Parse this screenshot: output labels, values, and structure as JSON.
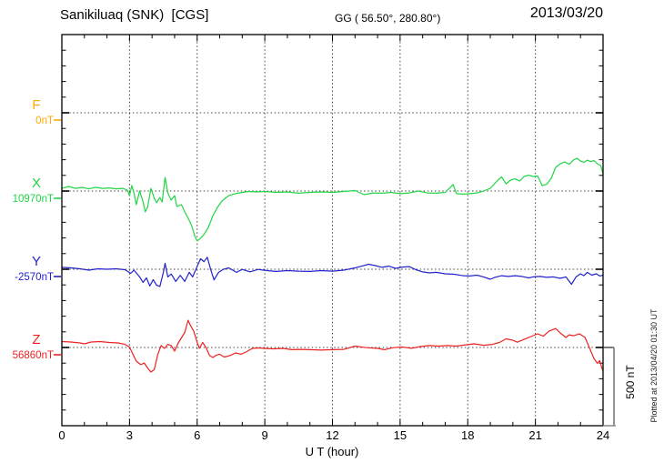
{
  "chart_data": {
    "type": "line",
    "title": "Sanikiluaq (SNK)  [CGS]",
    "coords_label": "GG ( 56.50°, 280.80°)",
    "date": "2013/03/20",
    "xlabel": "U T (hour)",
    "xlim": [
      0,
      24
    ],
    "x_ticks": [
      0,
      3,
      6,
      9,
      12,
      15,
      18,
      21,
      24
    ],
    "x_minor_step_hours": 1,
    "y_minor_tick_nT": 100,
    "baseline_separation_nT": 500,
    "grid": "dotted vertical lines at 3h major ticks; dotted horizontal line at each series baseline",
    "scale_bar_label": "500 nT",
    "scale_bar_nT": 500,
    "plotted_at": "Plotted at 2013/04/20 01:30 UT",
    "points_format": "[UT hour, offset in nT from series baseline value]",
    "series": [
      {
        "name": "F",
        "baseline_label": "0nT",
        "color": "#ffaa00",
        "points": []
      },
      {
        "name": "X",
        "baseline_label": "10970nT",
        "color": "#22d545",
        "points": [
          [
            0,
            17
          ],
          [
            0.3,
            29
          ],
          [
            0.6,
            17
          ],
          [
            0.9,
            23
          ],
          [
            1.2,
            14
          ],
          [
            1.5,
            23
          ],
          [
            1.8,
            17
          ],
          [
            2.1,
            20
          ],
          [
            2.4,
            14
          ],
          [
            2.7,
            17
          ],
          [
            2.9,
            6
          ],
          [
            3.0,
            -29
          ],
          [
            3.1,
            35
          ],
          [
            3.2,
            -12
          ],
          [
            3.3,
            -87
          ],
          [
            3.45,
            0
          ],
          [
            3.6,
            -70
          ],
          [
            3.7,
            -133
          ],
          [
            3.8,
            -104
          ],
          [
            3.95,
            17
          ],
          [
            4.1,
            -46
          ],
          [
            4.2,
            -75
          ],
          [
            4.35,
            -41
          ],
          [
            4.45,
            -70
          ],
          [
            4.58,
            87
          ],
          [
            4.7,
            -12
          ],
          [
            4.85,
            -58
          ],
          [
            5.0,
            -29
          ],
          [
            5.1,
            -99
          ],
          [
            5.3,
            -87
          ],
          [
            5.45,
            -133
          ],
          [
            5.6,
            -174
          ],
          [
            5.75,
            -220
          ],
          [
            5.9,
            -290
          ],
          [
            6.0,
            -319
          ],
          [
            6.15,
            -301
          ],
          [
            6.3,
            -278
          ],
          [
            6.5,
            -232
          ],
          [
            6.7,
            -157
          ],
          [
            6.9,
            -104
          ],
          [
            7.1,
            -64
          ],
          [
            7.4,
            -29
          ],
          [
            7.7,
            -17
          ],
          [
            8.0,
            -9
          ],
          [
            8.3,
            -3
          ],
          [
            8.6,
            -6
          ],
          [
            9.0,
            -3
          ],
          [
            9.5,
            -9
          ],
          [
            10.0,
            -6
          ],
          [
            10.5,
            -14
          ],
          [
            11.0,
            -9
          ],
          [
            11.5,
            -6
          ],
          [
            12.0,
            -9
          ],
          [
            12.5,
            -3
          ],
          [
            13.0,
            3
          ],
          [
            13.4,
            -23
          ],
          [
            13.8,
            -12
          ],
          [
            14.2,
            -14
          ],
          [
            14.6,
            -9
          ],
          [
            15.0,
            -17
          ],
          [
            15.4,
            -12
          ],
          [
            15.8,
            0
          ],
          [
            16.2,
            -12
          ],
          [
            16.6,
            -14
          ],
          [
            17.0,
            -9
          ],
          [
            17.35,
            41
          ],
          [
            17.5,
            -17
          ],
          [
            17.8,
            -20
          ],
          [
            18.1,
            -17
          ],
          [
            18.4,
            -12
          ],
          [
            18.7,
            0
          ],
          [
            19.0,
            17
          ],
          [
            19.3,
            64
          ],
          [
            19.5,
            90
          ],
          [
            19.7,
            46
          ],
          [
            19.9,
            70
          ],
          [
            20.1,
            78
          ],
          [
            20.3,
            64
          ],
          [
            20.5,
            93
          ],
          [
            20.7,
            101
          ],
          [
            20.9,
            93
          ],
          [
            21.1,
            96
          ],
          [
            21.3,
            35
          ],
          [
            21.5,
            43
          ],
          [
            21.7,
            81
          ],
          [
            21.9,
            151
          ],
          [
            22.1,
            174
          ],
          [
            22.3,
            186
          ],
          [
            22.5,
            171
          ],
          [
            22.7,
            200
          ],
          [
            22.85,
            209
          ],
          [
            23.0,
            191
          ],
          [
            23.15,
            183
          ],
          [
            23.3,
            197
          ],
          [
            23.45,
            188
          ],
          [
            23.6,
            194
          ],
          [
            23.75,
            174
          ],
          [
            23.9,
            162
          ],
          [
            24.0,
            107
          ]
        ]
      },
      {
        "name": "Y",
        "baseline_label": "-2570nT",
        "color": "#2222cc",
        "points": [
          [
            0,
            12
          ],
          [
            0.4,
            9
          ],
          [
            0.8,
            3
          ],
          [
            1.2,
            -6
          ],
          [
            1.6,
            3
          ],
          [
            2.0,
            0
          ],
          [
            2.4,
            3
          ],
          [
            2.8,
            -3
          ],
          [
            3.05,
            -26
          ],
          [
            3.2,
            -6
          ],
          [
            3.45,
            -49
          ],
          [
            3.6,
            -84
          ],
          [
            3.75,
            -55
          ],
          [
            3.9,
            -107
          ],
          [
            4.05,
            -67
          ],
          [
            4.2,
            -101
          ],
          [
            4.35,
            -110
          ],
          [
            4.5,
            -20
          ],
          [
            4.58,
            38
          ],
          [
            4.7,
            -49
          ],
          [
            4.85,
            -30
          ],
          [
            5.05,
            -78
          ],
          [
            5.25,
            -39
          ],
          [
            5.45,
            -78
          ],
          [
            5.65,
            -20
          ],
          [
            5.8,
            -49
          ],
          [
            6.0,
            19
          ],
          [
            6.15,
            67
          ],
          [
            6.3,
            48
          ],
          [
            6.45,
            77
          ],
          [
            6.6,
            -1
          ],
          [
            6.75,
            -68
          ],
          [
            6.95,
            -20
          ],
          [
            7.15,
            -1
          ],
          [
            7.4,
            9
          ],
          [
            7.75,
            -20
          ],
          [
            8.0,
            -1
          ],
          [
            8.35,
            -16
          ],
          [
            8.7,
            -1
          ],
          [
            9.1,
            -9
          ],
          [
            9.5,
            -14
          ],
          [
            10.0,
            -9
          ],
          [
            10.5,
            -12
          ],
          [
            11.0,
            -14
          ],
          [
            11.5,
            -9
          ],
          [
            12.0,
            -12
          ],
          [
            12.5,
            -6
          ],
          [
            13.0,
            9
          ],
          [
            13.3,
            20
          ],
          [
            13.6,
            32
          ],
          [
            13.9,
            23
          ],
          [
            14.2,
            12
          ],
          [
            14.5,
            20
          ],
          [
            14.8,
            6
          ],
          [
            15.1,
            14
          ],
          [
            15.4,
            17
          ],
          [
            15.7,
            -3
          ],
          [
            16.0,
            -17
          ],
          [
            16.3,
            -23
          ],
          [
            16.6,
            -20
          ],
          [
            17.0,
            -29
          ],
          [
            17.4,
            -32
          ],
          [
            17.8,
            -41
          ],
          [
            18.1,
            -43
          ],
          [
            18.4,
            -38
          ],
          [
            18.7,
            -49
          ],
          [
            19.0,
            -64
          ],
          [
            19.2,
            -52
          ],
          [
            19.5,
            -41
          ],
          [
            19.8,
            -46
          ],
          [
            20.1,
            -41
          ],
          [
            20.4,
            -46
          ],
          [
            20.7,
            -55
          ],
          [
            20.9,
            -49
          ],
          [
            21.2,
            -46
          ],
          [
            21.5,
            -52
          ],
          [
            21.8,
            -49
          ],
          [
            22.1,
            -58
          ],
          [
            22.35,
            -49
          ],
          [
            22.6,
            -96
          ],
          [
            22.8,
            -49
          ],
          [
            23.0,
            -29
          ],
          [
            23.15,
            -41
          ],
          [
            23.3,
            -20
          ],
          [
            23.5,
            -38
          ],
          [
            23.7,
            -29
          ],
          [
            23.85,
            -43
          ],
          [
            24.0,
            -38
          ]
        ]
      },
      {
        "name": "Z",
        "baseline_label": "56860nT",
        "color": "#ee2222",
        "points": [
          [
            0,
            38
          ],
          [
            0.4,
            35
          ],
          [
            0.8,
            29
          ],
          [
            1.0,
            23
          ],
          [
            1.3,
            35
          ],
          [
            1.7,
            38
          ],
          [
            2.1,
            32
          ],
          [
            2.5,
            29
          ],
          [
            2.8,
            20
          ],
          [
            3.0,
            3
          ],
          [
            3.15,
            -43
          ],
          [
            3.3,
            -87
          ],
          [
            3.5,
            -110
          ],
          [
            3.65,
            -99
          ],
          [
            3.8,
            -130
          ],
          [
            3.95,
            -157
          ],
          [
            4.1,
            -142
          ],
          [
            4.25,
            -46
          ],
          [
            4.4,
            12
          ],
          [
            4.55,
            -6
          ],
          [
            4.7,
            20
          ],
          [
            4.85,
            12
          ],
          [
            5.0,
            -23
          ],
          [
            5.15,
            26
          ],
          [
            5.3,
            61
          ],
          [
            5.45,
            96
          ],
          [
            5.6,
            174
          ],
          [
            5.7,
            142
          ],
          [
            5.85,
            104
          ],
          [
            6.0,
            32
          ],
          [
            6.1,
            -6
          ],
          [
            6.25,
            32
          ],
          [
            6.4,
            -3
          ],
          [
            6.55,
            -52
          ],
          [
            6.7,
            -64
          ],
          [
            6.85,
            -49
          ],
          [
            7.0,
            -43
          ],
          [
            7.2,
            -61
          ],
          [
            7.45,
            -52
          ],
          [
            7.7,
            -35
          ],
          [
            7.95,
            -43
          ],
          [
            8.2,
            -26
          ],
          [
            8.45,
            -6
          ],
          [
            8.7,
            -3
          ],
          [
            9.0,
            -6
          ],
          [
            9.4,
            -9
          ],
          [
            9.8,
            -6
          ],
          [
            10.2,
            -14
          ],
          [
            10.6,
            -12
          ],
          [
            11.0,
            -14
          ],
          [
            11.5,
            -17
          ],
          [
            12.0,
            -14
          ],
          [
            12.5,
            -12
          ],
          [
            13.0,
            9
          ],
          [
            13.5,
            -1
          ],
          [
            14.0,
            -6
          ],
          [
            14.3,
            -14
          ],
          [
            14.7,
            -1
          ],
          [
            15.1,
            3
          ],
          [
            15.5,
            -5
          ],
          [
            15.9,
            6
          ],
          [
            16.3,
            12
          ],
          [
            16.7,
            9
          ],
          [
            17.1,
            12
          ],
          [
            17.5,
            9
          ],
          [
            17.9,
            17
          ],
          [
            18.3,
            23
          ],
          [
            18.7,
            14
          ],
          [
            19.1,
            20
          ],
          [
            19.4,
            32
          ],
          [
            19.7,
            55
          ],
          [
            20.0,
            46
          ],
          [
            20.2,
            34
          ],
          [
            20.5,
            52
          ],
          [
            20.8,
            70
          ],
          [
            21.1,
            87
          ],
          [
            21.35,
            72
          ],
          [
            21.6,
            104
          ],
          [
            21.9,
            121
          ],
          [
            22.1,
            93
          ],
          [
            22.35,
            64
          ],
          [
            22.5,
            81
          ],
          [
            22.7,
            75
          ],
          [
            22.95,
            87
          ],
          [
            23.2,
            64
          ],
          [
            23.4,
            -3
          ],
          [
            23.6,
            -72
          ],
          [
            23.75,
            -101
          ],
          [
            23.85,
            -84
          ],
          [
            23.95,
            -133
          ],
          [
            24.0,
            -148
          ]
        ]
      }
    ]
  }
}
